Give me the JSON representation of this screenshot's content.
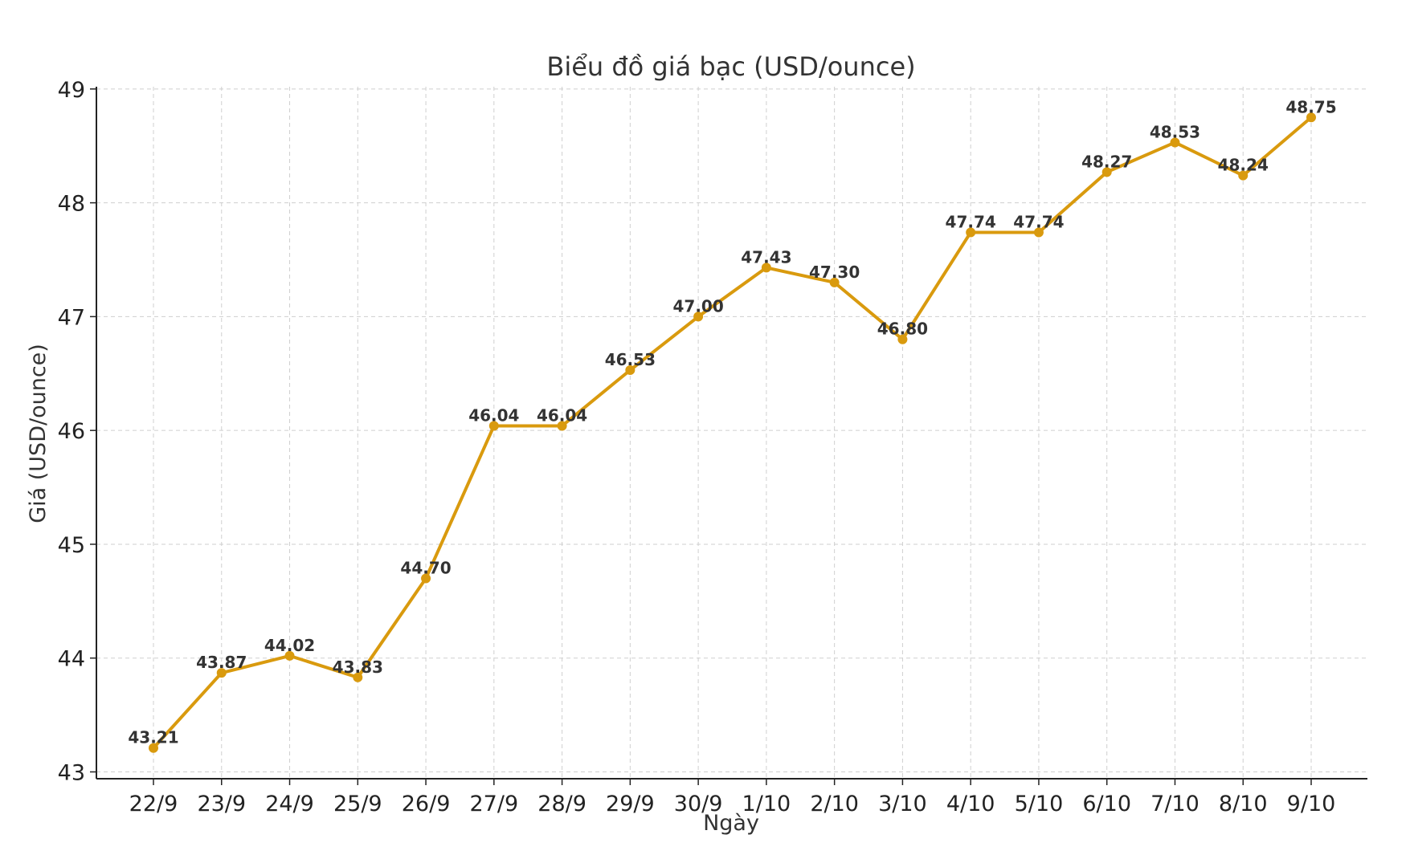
{
  "chart_data": {
    "type": "line",
    "title": "Biểu đồ giá bạc (USD/ounce)",
    "xlabel": "Ngày",
    "ylabel": "Giá (USD/ounce)",
    "categories": [
      "22/9",
      "23/9",
      "24/9",
      "25/9",
      "26/9",
      "27/9",
      "28/9",
      "29/9",
      "30/9",
      "1/10",
      "2/10",
      "3/10",
      "4/10",
      "5/10",
      "6/10",
      "7/10",
      "8/10",
      "9/10"
    ],
    "series": [
      {
        "values": [
          43.21,
          43.87,
          44.02,
          43.83,
          44.7,
          46.04,
          46.04,
          46.53,
          47.0,
          47.43,
          47.3,
          46.8,
          47.74,
          47.74,
          48.27,
          48.53,
          48.24,
          48.75
        ],
        "labels": [
          "43.21",
          "43.87",
          "44.02",
          "43.83",
          "44.70",
          "46.04",
          "46.04",
          "46.53",
          "47.00",
          "47.43",
          "47.30",
          "46.80",
          "47.74",
          "47.74",
          "48.27",
          "48.53",
          "48.24",
          "48.75"
        ],
        "color": "#D99A0E"
      }
    ],
    "yticks": [
      "43",
      "44",
      "45",
      "46",
      "47",
      "48",
      "49"
    ],
    "ylim": [
      42.94,
      49.02
    ],
    "grid": true,
    "legend": "none"
  }
}
